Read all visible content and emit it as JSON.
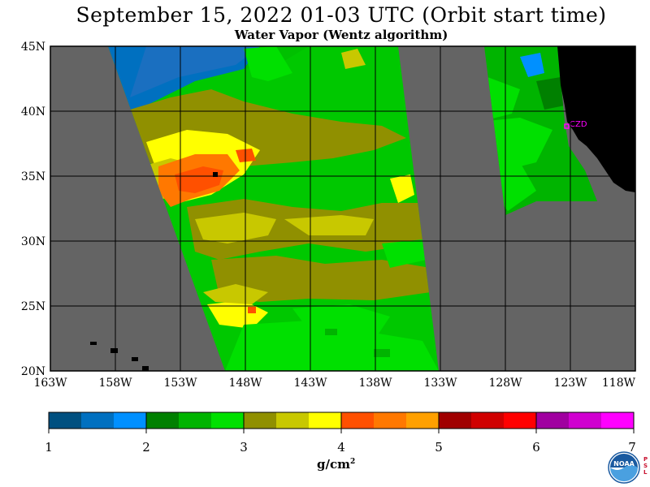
{
  "title": "September 15, 2022  01-03 UTC  (Orbit start time)",
  "subtitle": "Water Vapor (Wentz algorithm)",
  "map": {
    "lat_labels": [
      "45N",
      "40N",
      "35N",
      "30N",
      "25N",
      "20N"
    ],
    "lon_labels": [
      "163W",
      "158W",
      "153W",
      "148W",
      "143W",
      "138W",
      "133W",
      "128W",
      "123W",
      "118W"
    ],
    "station_label": "CZD",
    "colors": {
      "land": "#000000",
      "no_data": "#646464",
      "station": "#ff00ff"
    }
  },
  "colorbar": {
    "tick_labels": [
      "1",
      "2",
      "3",
      "4",
      "5",
      "6",
      "7"
    ],
    "colors": [
      "#005080",
      "#0070c0",
      "#0090ff",
      "#008000",
      "#00b400",
      "#00e000",
      "#909000",
      "#c8c800",
      "#ffff00",
      "#ff5000",
      "#ff7800",
      "#ffa000",
      "#a00000",
      "#d00000",
      "#ff0000",
      "#a000a0",
      "#d000d0",
      "#ff00ff"
    ],
    "units": "g/cm",
    "units_exponent": "2"
  },
  "logo": {
    "text": "NOAA",
    "side_text": [
      "P",
      "S",
      "L"
    ]
  }
}
